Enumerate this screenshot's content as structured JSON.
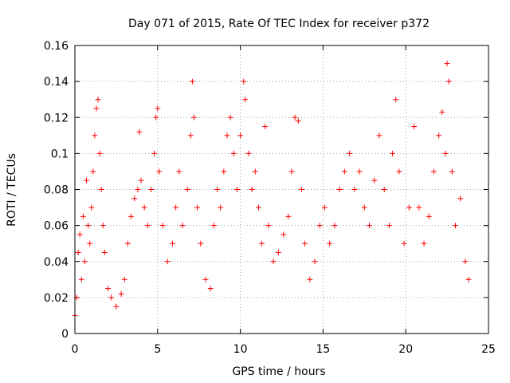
{
  "chart_data": {
    "type": "scatter",
    "title": "Day 071 of 2015, Rate Of TEC Index for receiver p372",
    "xlabel": "GPS time / hours",
    "ylabel": "ROTI / TECUs",
    "xlim": [
      0,
      25
    ],
    "ylim": [
      0,
      0.16
    ],
    "xticks": [
      "0",
      "5",
      "10",
      "15",
      "20",
      "25"
    ],
    "yticks": [
      "0",
      "0.02",
      "0.04",
      "0.06",
      "0.08",
      "0.1",
      "0.12",
      "0.14",
      "0.16"
    ],
    "grid": true,
    "marker": "plus",
    "color": "#ff0000",
    "series": [
      {
        "points": [
          [
            0.0,
            0.01
          ],
          [
            0.1,
            0.02
          ],
          [
            0.2,
            0.045
          ],
          [
            0.3,
            0.055
          ],
          [
            0.4,
            0.03
          ],
          [
            0.5,
            0.065
          ],
          [
            0.6,
            0.04
          ],
          [
            0.7,
            0.085
          ],
          [
            0.8,
            0.06
          ],
          [
            0.9,
            0.05
          ],
          [
            1.0,
            0.07
          ],
          [
            1.1,
            0.09
          ],
          [
            1.2,
            0.11
          ],
          [
            1.3,
            0.125
          ],
          [
            1.4,
            0.13
          ],
          [
            1.5,
            0.1
          ],
          [
            1.6,
            0.08
          ],
          [
            1.7,
            0.06
          ],
          [
            1.8,
            0.045
          ],
          [
            2.0,
            0.025
          ],
          [
            2.2,
            0.02
          ],
          [
            2.5,
            0.015
          ],
          [
            2.8,
            0.022
          ],
          [
            3.0,
            0.03
          ],
          [
            3.2,
            0.05
          ],
          [
            3.4,
            0.065
          ],
          [
            3.6,
            0.075
          ],
          [
            3.8,
            0.08
          ],
          [
            3.9,
            0.112
          ],
          [
            4.0,
            0.085
          ],
          [
            4.2,
            0.07
          ],
          [
            4.4,
            0.06
          ],
          [
            4.6,
            0.08
          ],
          [
            4.8,
            0.1
          ],
          [
            4.9,
            0.12
          ],
          [
            5.0,
            0.125
          ],
          [
            5.1,
            0.09
          ],
          [
            5.3,
            0.06
          ],
          [
            5.6,
            0.04
          ],
          [
            5.9,
            0.05
          ],
          [
            6.1,
            0.07
          ],
          [
            6.3,
            0.09
          ],
          [
            6.5,
            0.06
          ],
          [
            6.8,
            0.08
          ],
          [
            7.0,
            0.11
          ],
          [
            7.1,
            0.14
          ],
          [
            7.2,
            0.12
          ],
          [
            7.4,
            0.07
          ],
          [
            7.6,
            0.05
          ],
          [
            7.9,
            0.03
          ],
          [
            8.2,
            0.025
          ],
          [
            8.4,
            0.06
          ],
          [
            8.6,
            0.08
          ],
          [
            8.8,
            0.07
          ],
          [
            9.0,
            0.09
          ],
          [
            9.2,
            0.11
          ],
          [
            9.4,
            0.12
          ],
          [
            9.6,
            0.1
          ],
          [
            9.8,
            0.08
          ],
          [
            10.0,
            0.11
          ],
          [
            10.2,
            0.14
          ],
          [
            10.3,
            0.13
          ],
          [
            10.5,
            0.1
          ],
          [
            10.7,
            0.08
          ],
          [
            10.9,
            0.09
          ],
          [
            11.1,
            0.07
          ],
          [
            11.3,
            0.05
          ],
          [
            11.5,
            0.115
          ],
          [
            11.7,
            0.06
          ],
          [
            12.0,
            0.04
          ],
          [
            12.3,
            0.045
          ],
          [
            12.6,
            0.055
          ],
          [
            12.9,
            0.065
          ],
          [
            13.1,
            0.09
          ],
          [
            13.3,
            0.12
          ],
          [
            13.5,
            0.118
          ],
          [
            13.7,
            0.08
          ],
          [
            13.9,
            0.05
          ],
          [
            14.2,
            0.03
          ],
          [
            14.5,
            0.04
          ],
          [
            14.8,
            0.06
          ],
          [
            15.1,
            0.07
          ],
          [
            15.4,
            0.05
          ],
          [
            15.7,
            0.06
          ],
          [
            16.0,
            0.08
          ],
          [
            16.3,
            0.09
          ],
          [
            16.6,
            0.1
          ],
          [
            16.9,
            0.08
          ],
          [
            17.2,
            0.09
          ],
          [
            17.5,
            0.07
          ],
          [
            17.8,
            0.06
          ],
          [
            18.1,
            0.085
          ],
          [
            18.4,
            0.11
          ],
          [
            18.7,
            0.08
          ],
          [
            19.0,
            0.06
          ],
          [
            19.2,
            0.1
          ],
          [
            19.4,
            0.13
          ],
          [
            19.6,
            0.09
          ],
          [
            19.9,
            0.05
          ],
          [
            20.2,
            0.07
          ],
          [
            20.5,
            0.115
          ],
          [
            20.8,
            0.07
          ],
          [
            21.1,
            0.05
          ],
          [
            21.4,
            0.065
          ],
          [
            21.7,
            0.09
          ],
          [
            22.0,
            0.11
          ],
          [
            22.2,
            0.123
          ],
          [
            22.4,
            0.1
          ],
          [
            22.5,
            0.15
          ],
          [
            22.6,
            0.14
          ],
          [
            22.8,
            0.09
          ],
          [
            23.0,
            0.06
          ],
          [
            23.3,
            0.075
          ],
          [
            23.6,
            0.04
          ],
          [
            23.8,
            0.03
          ]
        ]
      }
    ]
  }
}
